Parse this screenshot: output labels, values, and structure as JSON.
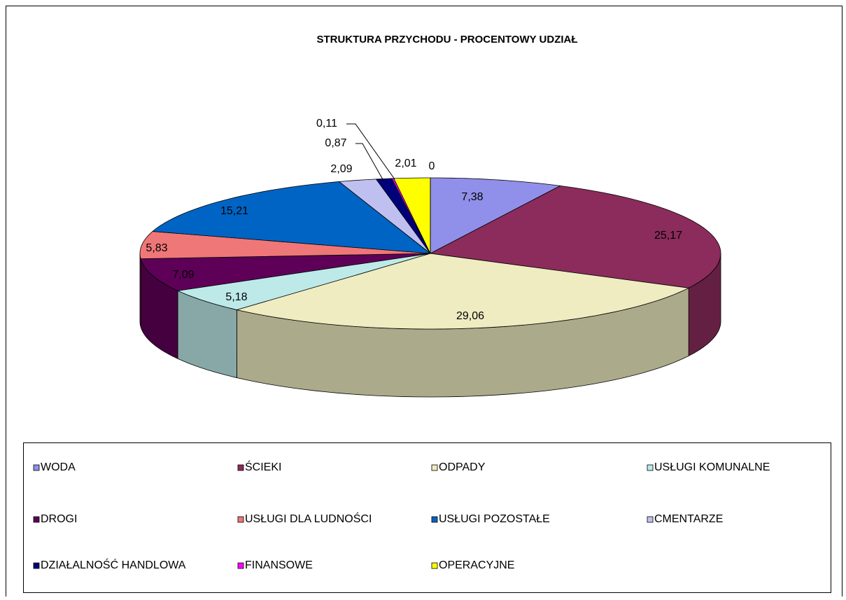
{
  "chart_data": {
    "type": "pie3d",
    "title": "STRUKTURA PRZYCHODU - PROCENTOWY UDZIAŁ",
    "categories": [
      "WODA",
      "ŚCIEKI",
      "ODPADY",
      "USŁUGI KOMUNALNE",
      "DROGI",
      "USŁUGI DLA LUDNOŚCI",
      "USŁUGI POZOSTAŁE",
      "CMENTARZE",
      "DZIAŁALNOŚĆ HANDLOWA",
      "FINANSOWE",
      "OPERACYJNE",
      null
    ],
    "values": [
      7.38,
      25.17,
      29.06,
      5.18,
      7.09,
      5.83,
      15.21,
      2.09,
      0.87,
      0.11,
      2.01,
      0
    ],
    "value_labels": [
      "7,38",
      "25,17",
      "29,06",
      "5,18",
      "7,09",
      "5,83",
      "15,21",
      "2,09",
      "0,87",
      "0,11",
      "2,01",
      "0"
    ],
    "colors": [
      "#9090ea",
      "#8b2c5c",
      "#eeecc0",
      "#bde9e9",
      "#5e0058",
      "#ef7777",
      "#0064c4",
      "#c0c0f0",
      "#00007a",
      "#ff00ff",
      "#ffff00",
      "#ffffff"
    ],
    "legend": "bottom"
  }
}
